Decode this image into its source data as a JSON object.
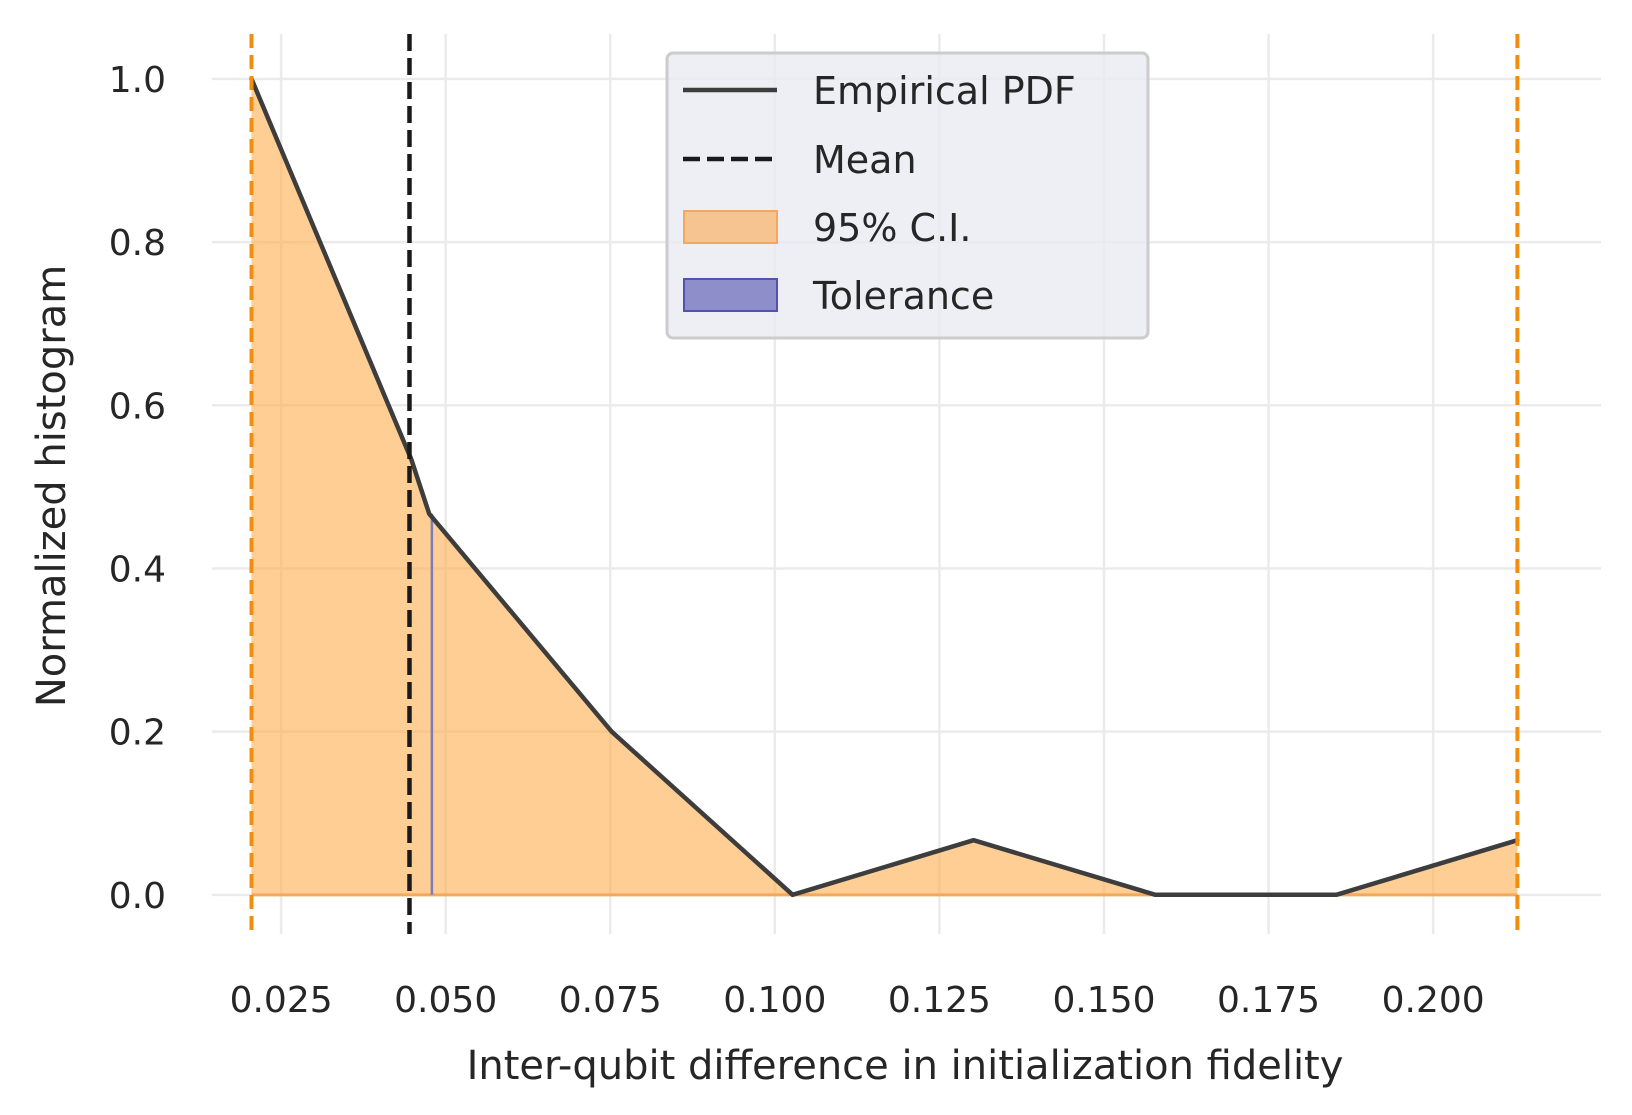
{
  "chart_data": {
    "type": "line",
    "xlabel": "Inter-qubit difference in initialization fidelity",
    "ylabel": "Normalized histogram",
    "xlim": [
      0.0145,
      0.2255
    ],
    "ylim": [
      -0.048,
      1.055
    ],
    "x_ticks": [
      0.025,
      0.05,
      0.075,
      0.1,
      0.125,
      0.15,
      0.175,
      0.2
    ],
    "x_tick_labels": [
      "0.025",
      "0.050",
      "0.075",
      "0.100",
      "0.125",
      "0.150",
      "0.175",
      "0.200"
    ],
    "y_ticks": [
      0.0,
      0.2,
      0.4,
      0.6,
      0.8,
      1.0
    ],
    "y_tick_labels": [
      "0.0",
      "0.2",
      "0.4",
      "0.6",
      "0.8",
      "1.0"
    ],
    "grid": true,
    "legend_position": "top-center",
    "series": [
      {
        "name": "Empirical PDF",
        "style": "solid",
        "color": "#3d3d3d",
        "x": [
          0.0205,
          0.0448,
          0.0475,
          0.0752,
          0.1027,
          0.1302,
          0.1578,
          0.1853,
          0.2128
        ],
        "y": [
          1.0,
          0.533,
          0.467,
          0.2,
          0.0,
          0.067,
          0.0,
          0.0,
          0.067
        ]
      }
    ],
    "mean": {
      "name": "Mean",
      "x": 0.0445,
      "color": "#1a1a1a",
      "style": "dashed"
    },
    "confidence_interval": {
      "name": "95% C.I.",
      "x": [
        0.0205,
        0.2128
      ],
      "color": "#fdae4f",
      "edge_color": "#f28e0f"
    },
    "tolerance": {
      "name": "Tolerance",
      "x": 0.0479,
      "height": 0.467,
      "color": "#4b4bb0"
    }
  }
}
